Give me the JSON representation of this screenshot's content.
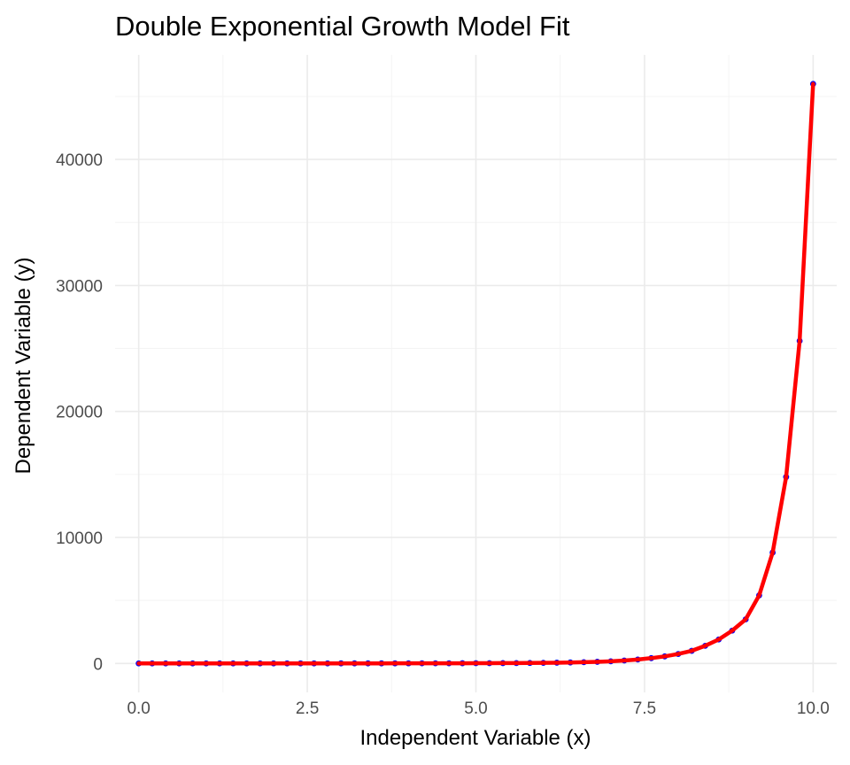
{
  "chart_data": {
    "type": "scatter",
    "title": "Double Exponential Growth Model Fit",
    "xlabel": "Independent Variable (x)",
    "ylabel": "Dependent Variable (y)",
    "xlim": [
      -0.35,
      10.35
    ],
    "ylim": [
      -2300,
      48300
    ],
    "x_ticks": [
      0,
      2.5,
      5,
      7.5,
      10
    ],
    "x_tick_labels": [
      "0.0",
      "2.5",
      "5.0",
      "7.5",
      "10.0"
    ],
    "y_ticks": [
      0,
      10000,
      20000,
      30000,
      40000
    ],
    "y_tick_labels": [
      "0",
      "10000",
      "20000",
      "30000",
      "40000"
    ],
    "grid": true,
    "legend": "none",
    "colors": {
      "points": "#0000ff",
      "fit_line": "#ff0000",
      "grid": "#ebebeb"
    },
    "series": [
      {
        "kind": "points",
        "x": [
          0,
          0.2,
          0.4,
          0.6,
          0.8,
          1,
          1.2,
          1.4,
          1.6,
          1.8,
          2,
          2.2,
          2.4,
          2.6,
          2.8,
          3,
          3.2,
          3.4,
          3.6,
          3.8,
          4,
          4.2,
          4.4,
          4.6,
          4.8,
          5,
          5.2,
          5.4,
          5.6,
          5.8,
          6,
          6.2,
          6.4,
          6.6,
          6.8,
          7,
          7.2,
          7.4,
          7.6,
          7.8,
          8,
          8.2,
          8.4,
          8.6,
          8.8,
          9,
          9.2,
          9.4,
          9.6,
          9.8,
          10
        ],
        "y": [
          2,
          2,
          2,
          2,
          2,
          3,
          3,
          3,
          3,
          3,
          3,
          4,
          4,
          4,
          4,
          5,
          5,
          6,
          6,
          7,
          8,
          9,
          10,
          12,
          14,
          17,
          20,
          24,
          30,
          37,
          46,
          58,
          75,
          97,
          128,
          170,
          230,
          310,
          420,
          560,
          750,
          1000,
          1400,
          1900,
          2600,
          3500,
          5400,
          8800,
          14800,
          25600,
          46000
        ]
      },
      {
        "kind": "fit_line",
        "x": [
          0,
          0.2,
          0.4,
          0.6,
          0.8,
          1,
          1.2,
          1.4,
          1.6,
          1.8,
          2,
          2.2,
          2.4,
          2.6,
          2.8,
          3,
          3.2,
          3.4,
          3.6,
          3.8,
          4,
          4.2,
          4.4,
          4.6,
          4.8,
          5,
          5.2,
          5.4,
          5.6,
          5.8,
          6,
          6.2,
          6.4,
          6.6,
          6.8,
          7,
          7.2,
          7.4,
          7.6,
          7.8,
          8,
          8.2,
          8.4,
          8.6,
          8.8,
          9,
          9.2,
          9.4,
          9.6,
          9.8,
          10
        ],
        "y": [
          2,
          2,
          2,
          2,
          2,
          3,
          3,
          3,
          3,
          3,
          3,
          4,
          4,
          4,
          4,
          5,
          5,
          6,
          6,
          7,
          8,
          9,
          10,
          12,
          14,
          17,
          20,
          24,
          30,
          37,
          46,
          58,
          75,
          97,
          128,
          170,
          230,
          310,
          420,
          560,
          750,
          1000,
          1400,
          1900,
          2600,
          3500,
          5400,
          8800,
          14800,
          25600,
          46000
        ]
      }
    ]
  }
}
